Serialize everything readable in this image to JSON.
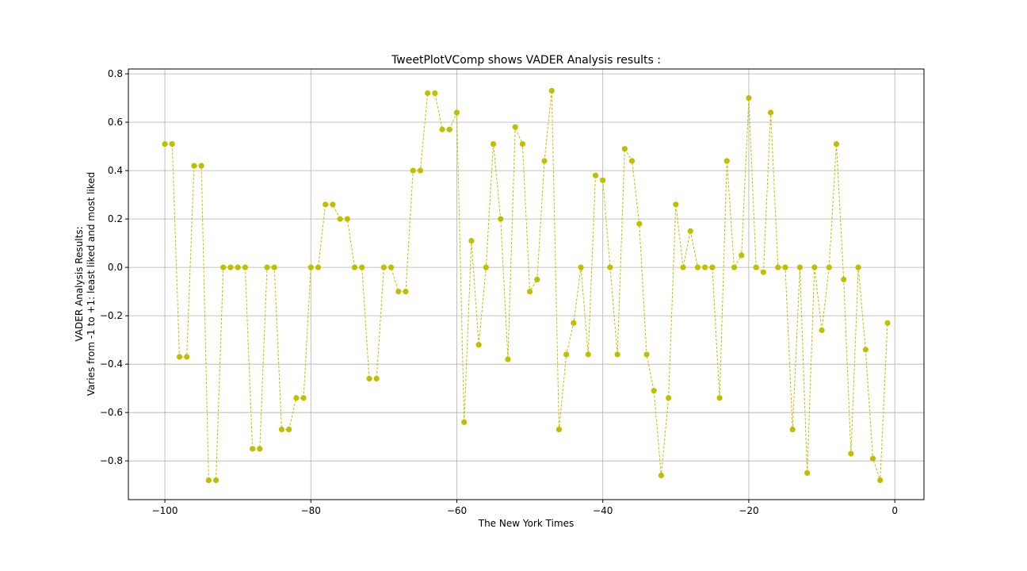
{
  "chart_data": {
    "type": "line",
    "title": "TweetPlotVComp shows VADER Analysis results :",
    "xlabel": "The New York Times",
    "ylabel_line1": "VADER Analysis Results:",
    "ylabel_line2": "Varies from -1 to +1: least liked and most liked",
    "xlim": [
      -105,
      4
    ],
    "ylim": [
      -0.96,
      0.82
    ],
    "x_ticks": [
      -100,
      -80,
      -60,
      -40,
      -20,
      0
    ],
    "x_tick_labels": [
      "−100",
      "−80",
      "−60",
      "−40",
      "−20",
      "0"
    ],
    "y_ticks": [
      -0.8,
      -0.6,
      -0.4,
      -0.2,
      0.0,
      0.2,
      0.4,
      0.6,
      0.8
    ],
    "y_tick_labels": [
      "−0.8",
      "−0.6",
      "−0.4",
      "−0.2",
      "0.0",
      "0.2",
      "0.4",
      "0.6",
      "0.8"
    ],
    "grid": true,
    "line_style": "dashed",
    "color": "#bfbf00",
    "series": [
      {
        "x": [
          -100,
          -99,
          -98,
          -97,
          -96,
          -95,
          -94,
          -93,
          -92,
          -91,
          -90,
          -89,
          -88,
          -87,
          -86,
          -85,
          -84,
          -83,
          -82,
          -81,
          -80,
          -79,
          -78,
          -77,
          -76,
          -75,
          -74,
          -73,
          -72,
          -71,
          -70,
          -69,
          -68,
          -67,
          -66,
          -65,
          -64,
          -63,
          -62,
          -61,
          -60,
          -59,
          -58,
          -57,
          -56,
          -55,
          -54,
          -53,
          -52,
          -51,
          -50,
          -49,
          -48,
          -47,
          -46,
          -45,
          -44,
          -43,
          -42,
          -41,
          -40,
          -39,
          -38,
          -37,
          -36,
          -35,
          -34,
          -33,
          -32,
          -31,
          -30,
          -29,
          -28,
          -27,
          -26,
          -25,
          -24,
          -23,
          -22,
          -21,
          -20,
          -19,
          -18,
          -17,
          -16,
          -15,
          -14,
          -13,
          -12,
          -11,
          -10,
          -9,
          -8,
          -7,
          -6,
          -5,
          -4,
          -3,
          -2,
          -1
        ],
        "y": [
          0.51,
          0.51,
          -0.37,
          -0.37,
          0.42,
          0.42,
          -0.88,
          -0.88,
          0.0,
          0.0,
          0.0,
          0.0,
          -0.75,
          -0.75,
          0.0,
          0.0,
          -0.67,
          -0.67,
          -0.54,
          -0.54,
          0.0,
          0.0,
          0.26,
          0.26,
          0.2,
          0.2,
          0.0,
          0.0,
          -0.46,
          -0.46,
          0.0,
          0.0,
          -0.1,
          -0.1,
          0.4,
          0.4,
          0.72,
          0.72,
          0.57,
          0.57,
          0.64,
          -0.64,
          0.11,
          -0.32,
          0.0,
          0.51,
          0.2,
          -0.38,
          0.58,
          0.51,
          -0.1,
          -0.05,
          0.44,
          0.73,
          -0.67,
          -0.36,
          -0.23,
          0.0,
          -0.36,
          0.38,
          0.36,
          0.0,
          -0.36,
          0.49,
          0.44,
          0.18,
          -0.36,
          -0.51,
          -0.86,
          -0.54,
          0.26,
          0.0,
          0.15,
          0.0,
          0.0,
          0.0,
          -0.54,
          0.44,
          0.0,
          0.05,
          0.7,
          0.0,
          -0.02,
          0.64,
          0.0,
          0.0,
          -0.67,
          0.0,
          -0.85,
          0.0,
          -0.26,
          0.0,
          0.51,
          -0.05,
          -0.77,
          0.0,
          -0.34,
          -0.79,
          -0.88,
          -0.23
        ]
      }
    ]
  }
}
